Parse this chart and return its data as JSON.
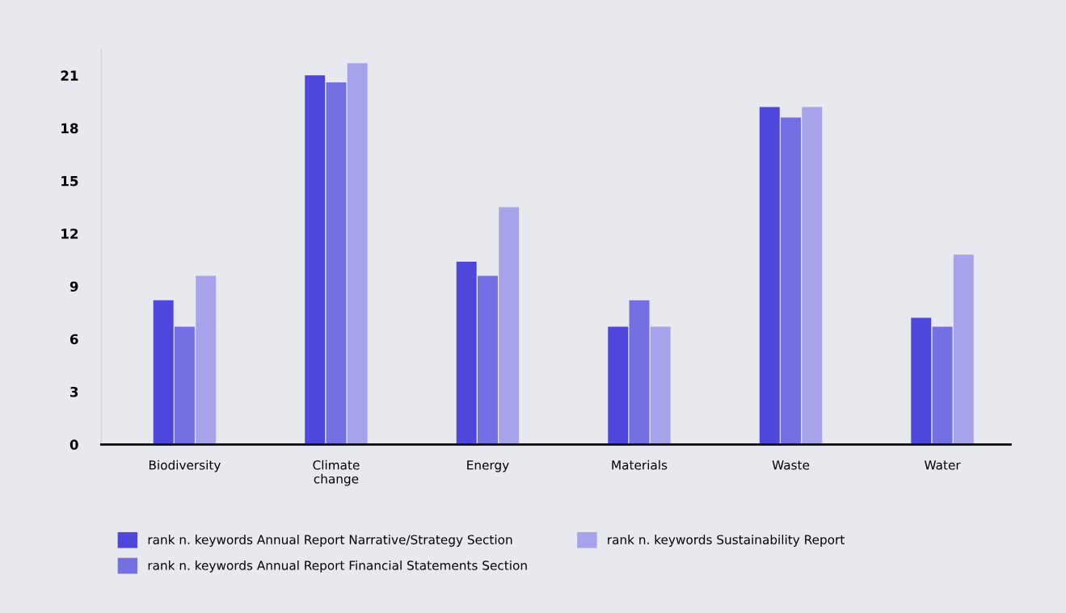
{
  "chart_data": {
    "type": "bar",
    "categories": [
      "Biodiversity",
      "Climate\nchange",
      "Energy",
      "Materials",
      "Waste",
      "Water"
    ],
    "series": [
      {
        "name": "rank n. keywords Annual Report Narrative/Strategy Section",
        "color": "#4f46dc",
        "values": [
          8.2,
          21,
          10.4,
          6.7,
          19.2,
          7.2
        ]
      },
      {
        "name": "rank n. keywords Annual Report Financial Statements Section",
        "color": "#7470e3",
        "values": [
          6.7,
          20.6,
          9.6,
          8.2,
          18.6,
          6.7
        ]
      },
      {
        "name": "rank n. keywords Sustainability Report",
        "color": "#a7a3eb",
        "values": [
          9.6,
          21.7,
          13.5,
          6.7,
          19.2,
          10.8
        ]
      }
    ],
    "ylim": [
      0,
      22.5
    ],
    "yticks": [
      0,
      3,
      6,
      9,
      12,
      15,
      18,
      21
    ],
    "grid": false,
    "legend": "bottom"
  }
}
